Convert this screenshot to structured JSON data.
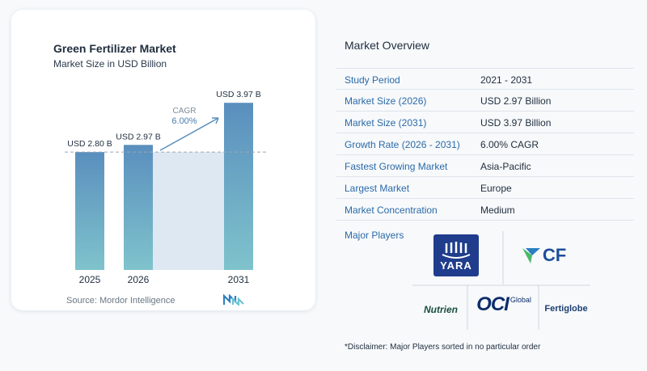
{
  "chart_data": {
    "type": "bar",
    "title": "Green Fertilizer Market",
    "subtitle": "Market Size in USD Billion",
    "categories": [
      "2025",
      "2026",
      "2031"
    ],
    "values": [
      2.8,
      2.97,
      3.97
    ],
    "value_labels": [
      "USD 2.80 B",
      "USD 2.97 B",
      "USD 3.97 B"
    ],
    "ylim": [
      0,
      4.3
    ],
    "cagr_label": "CAGR",
    "cagr_value": "6.00%",
    "reference_line_value": 2.8,
    "colors": {
      "bar_top": "#5a8fbe",
      "bar_bottom": "#7fc3cc",
      "shade": "#dde8f2",
      "arrow": "#5a8fbe"
    }
  },
  "source": "Source: Mordor Intelligence",
  "overview": {
    "title": "Market Overview",
    "rows": [
      {
        "label": "Study Period",
        "value": "2021 - 2031"
      },
      {
        "label": "Market Size (2026)",
        "value": "USD 2.97 Billion"
      },
      {
        "label": "Market Size (2031)",
        "value": "USD 3.97 Billion"
      },
      {
        "label": "Growth Rate (2026 - 2031)",
        "value": "6.00% CAGR"
      },
      {
        "label": "Fastest Growing Market",
        "value": "Asia-Pacific"
      },
      {
        "label": "Largest Market",
        "value": "Europe"
      },
      {
        "label": "Market Concentration",
        "value": "Medium"
      }
    ]
  },
  "players": {
    "title": "Major Players",
    "logos": {
      "yara": "YARA",
      "cf": "CF",
      "nutrien": "Nutrien",
      "oci": "OCI",
      "oci_sub": "Global",
      "fertiglobe": "Fertiglobe"
    }
  },
  "disclaimer": "*Disclaimer: Major Players sorted in no particular order"
}
